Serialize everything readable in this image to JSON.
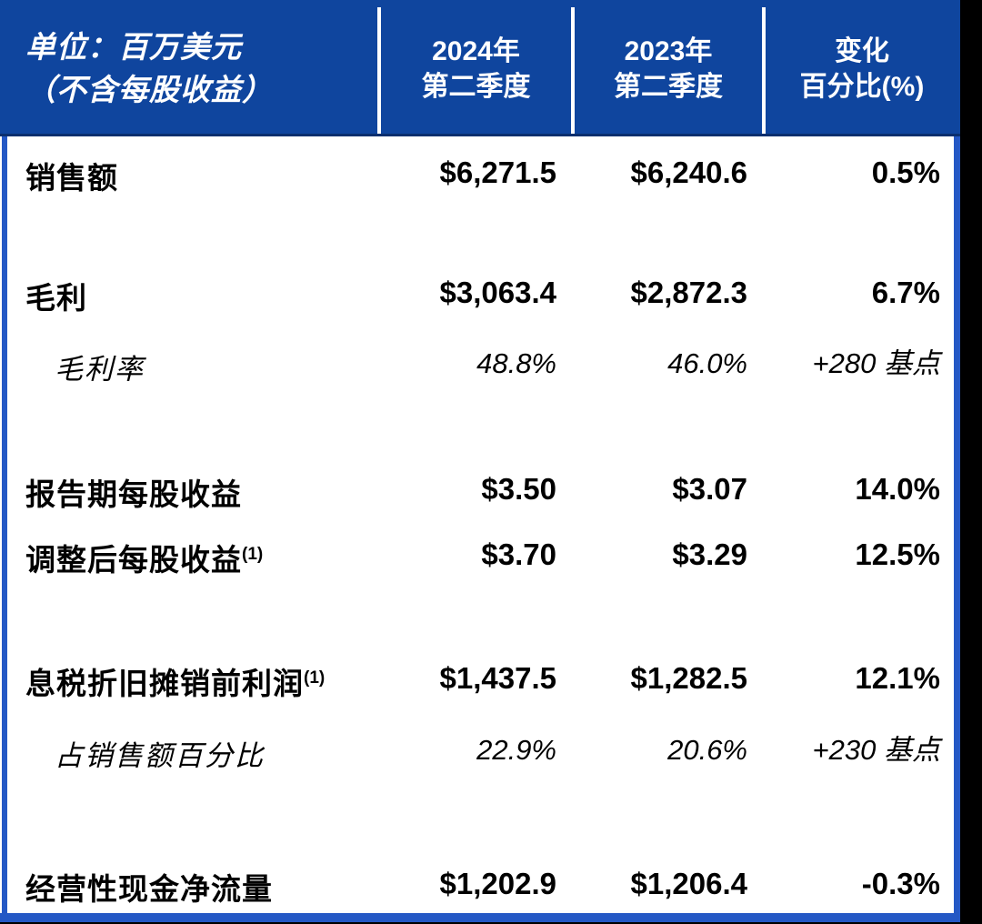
{
  "colors": {
    "page_bg": "#000000",
    "body_bg": "#FFFFFF",
    "header_bg": "#0F459E",
    "header_edge": "#0A2F6E",
    "header_divider": "#FFFFFF",
    "border_blue": "#2458C5",
    "header_text": "#FFFFFF",
    "text": "#000000"
  },
  "header": {
    "unit_line1": "单位：百万美元",
    "unit_line2": "（不含每股收益）",
    "columns": [
      {
        "line1": "2024年",
        "line2": "第二季度"
      },
      {
        "line1": "2023年",
        "line2": "第二季度"
      },
      {
        "line1": "变化",
        "line2": "百分比(%)"
      }
    ]
  },
  "rows": [
    {
      "label": "销售额",
      "sup": "",
      "type": "primary",
      "q2_2024": "$6,271.5",
      "q2_2023": "$6,240.6",
      "change": "0.5%"
    },
    {
      "label": "毛利",
      "sup": "",
      "type": "primary",
      "q2_2024": "$3,063.4",
      "q2_2023": "$2,872.3",
      "change": "6.7%"
    },
    {
      "label": "毛利率",
      "sup": "",
      "type": "sub",
      "q2_2024": "48.8%",
      "q2_2023": "46.0%",
      "change": "+280 基点"
    },
    {
      "label": "报告期每股收益",
      "sup": "",
      "type": "primary",
      "q2_2024": "$3.50",
      "q2_2023": "$3.07",
      "change": "14.0%"
    },
    {
      "label": "调整后每股收益",
      "sup": "(1)",
      "type": "primary",
      "q2_2024": "$3.70",
      "q2_2023": "$3.29",
      "change": "12.5%"
    },
    {
      "label": "息税折旧摊销前利润",
      "sup": "(1)",
      "type": "primary",
      "q2_2024": "$1,437.5",
      "q2_2023": "$1,282.5",
      "change": "12.1%"
    },
    {
      "label": "占销售额百分比",
      "sup": "",
      "type": "sub",
      "q2_2024": "22.9%",
      "q2_2023": "20.6%",
      "change": "+230 基点"
    },
    {
      "label": "经营性现金净流量",
      "sup": "",
      "type": "primary",
      "q2_2024": "$1,202.9",
      "q2_2023": "$1,206.4",
      "change": "-0.3%"
    }
  ]
}
